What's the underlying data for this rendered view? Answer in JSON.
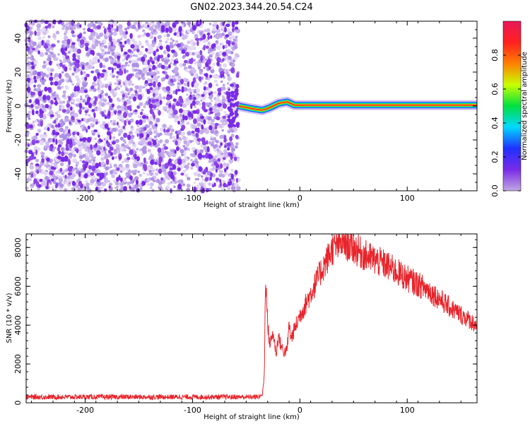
{
  "title": "GN02.2023.344.20.54.C24",
  "colors": {
    "snr_line": "#e8242b",
    "noise_dots": "#7a2be8",
    "carrier_core": "#ff2020",
    "carrier_mid": "#28d828",
    "carrier_edge": "#1a3cff",
    "colorbar_stops": [
      "#c0a8e0",
      "#7a2be8",
      "#2030ff",
      "#00d8ff",
      "#00e040",
      "#c8ff00",
      "#ff8000",
      "#ff2020",
      "#e8185a"
    ]
  },
  "chart_data": [
    {
      "id": "spectrogram",
      "type": "heatmap",
      "xlabel": "Height of straight line (km)",
      "ylabel": "Frequency (Hz)",
      "xlim": [
        -255,
        165
      ],
      "ylim": [
        -50,
        50
      ],
      "x_ticks": [
        -200,
        -100,
        0,
        100
      ],
      "y_ticks": [
        -40,
        -20,
        0,
        20,
        40
      ],
      "noise_region_x": [
        -255,
        -57
      ],
      "carrier_x": [
        -57,
        165
      ],
      "carrier_freq": 0,
      "carrier_wobble": [
        {
          "x": -57,
          "f": 0.0
        },
        {
          "x": -45,
          "f": -1.5
        },
        {
          "x": -35,
          "f": -2.5
        },
        {
          "x": -28,
          "f": -1.0
        },
        {
          "x": -20,
          "f": 1.5
        },
        {
          "x": -12,
          "f": 2.5
        },
        {
          "x": -5,
          "f": 0.5
        },
        {
          "x": 0,
          "f": 0.5
        },
        {
          "x": 165,
          "f": 0.5
        }
      ],
      "colorbar": {
        "label": "Normalized spectral amplitude",
        "ticks": [
          0.0,
          0.2,
          0.4,
          0.6,
          0.8
        ],
        "range": [
          0,
          1
        ]
      }
    },
    {
      "id": "snr",
      "type": "line",
      "xlabel": "Height of straight line (km)",
      "ylabel": "SNR (10 * v/v)",
      "xlim": [
        -255,
        165
      ],
      "ylim": [
        0,
        8700
      ],
      "x_ticks": [
        -200,
        -100,
        0,
        100
      ],
      "y_ticks": [
        0,
        2000,
        4000,
        6000,
        8000
      ],
      "series": [
        {
          "x": [
            -255,
            -40,
            -35,
            -33,
            -32,
            -30,
            -28,
            -25,
            -22,
            -20,
            -18,
            -15,
            -12,
            -10,
            -8,
            -5,
            0,
            10,
            20,
            30,
            40,
            50,
            60,
            80,
            100,
            120,
            140,
            165
          ],
          "y": [
            300,
            300,
            400,
            1500,
            6800,
            4000,
            3000,
            3600,
            2500,
            3500,
            3000,
            2600,
            2700,
            4000,
            3300,
            3800,
            4500,
            5600,
            6800,
            7900,
            8300,
            8000,
            7600,
            7100,
            6400,
            5800,
            4900,
            4000
          ]
        }
      ]
    }
  ]
}
